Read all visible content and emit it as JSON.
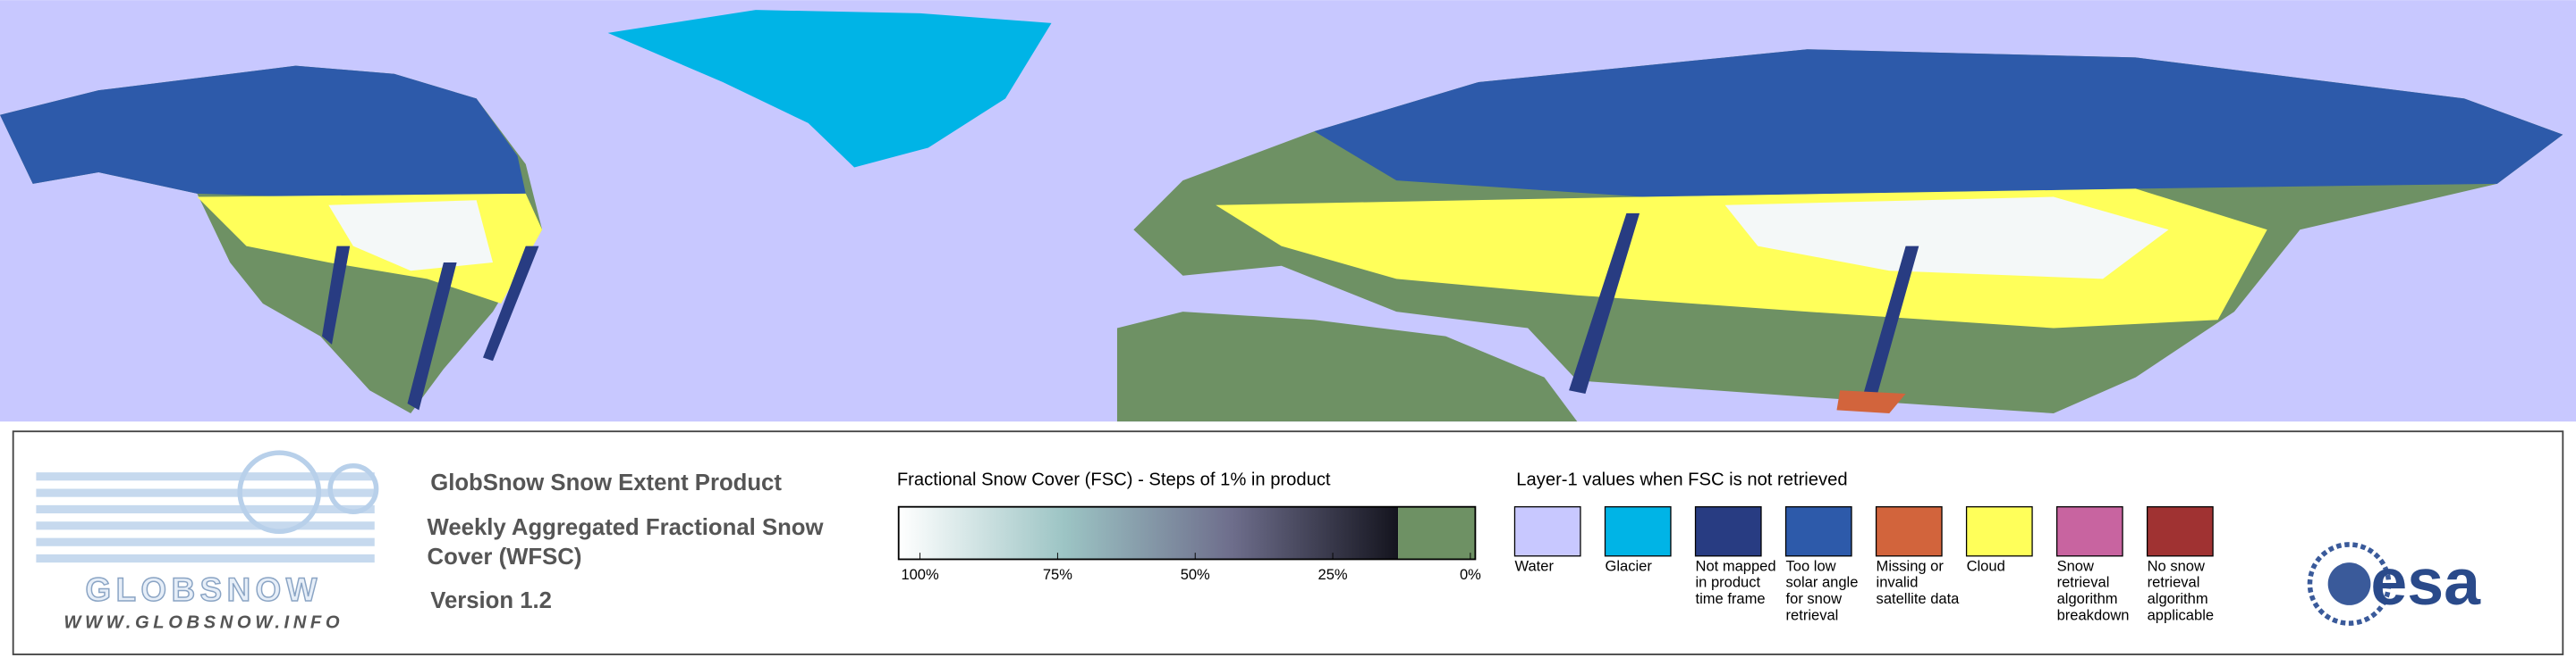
{
  "product": {
    "title": "GlobSnow Snow Extent Product",
    "subtitle": "Weekly Aggregated Fractional Snow Cover (WFSC)",
    "version": "Version 1.2"
  },
  "logo": {
    "name": "GLOBSNOW",
    "url": "WWW.GLOBSNOW.INFO",
    "agency": "esa"
  },
  "colorbar": {
    "title": "Fractional Snow Cover (FSC) - Steps of 1% in product",
    "ticks": [
      {
        "value": 100,
        "label": "100%"
      },
      {
        "value": 75,
        "label": "75%"
      },
      {
        "value": 50,
        "label": "50%"
      },
      {
        "value": 25,
        "label": "25%"
      },
      {
        "value": 0,
        "label": "0%"
      }
    ],
    "colors": [
      "#ffffff",
      "#9cc4c4",
      "#6e6e8c",
      "#14141e"
    ],
    "zero_color": "#6e9164"
  },
  "layer1": {
    "title": "Layer-1 values when FSC is not retrieved",
    "items": [
      {
        "label": "Water",
        "color": "#c8c8ff"
      },
      {
        "label": "Glacier",
        "color": "#00b4e6"
      },
      {
        "label": "Not mapped in product time frame",
        "color": "#283c82"
      },
      {
        "label": "Too low solar angle for snow retrieval",
        "color": "#2d5aaa"
      },
      {
        "label": "Missing or invalid satellite data",
        "color": "#d2643c"
      },
      {
        "label": "Cloud",
        "color": "#ffff5a"
      },
      {
        "label": "Snow retrieval algorithm breakdown",
        "color": "#c864a0"
      },
      {
        "label": "No snow retrieval algorithm applicable",
        "color": "#a03232"
      }
    ]
  }
}
